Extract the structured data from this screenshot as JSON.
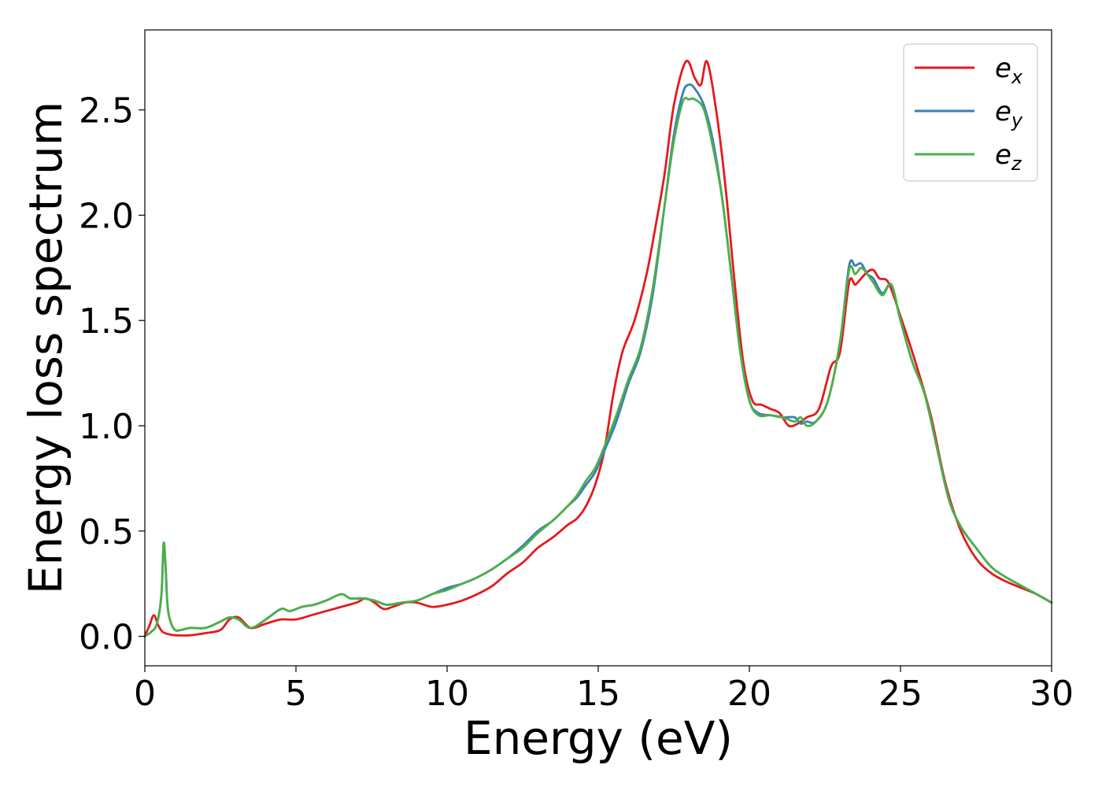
{
  "chart_data": {
    "type": "line",
    "xlabel": "Energy (eV)",
    "ylabel": "Energy loss spectrum",
    "xlim": [
      0,
      30
    ],
    "ylim": [
      -0.14,
      2.88
    ],
    "xticks": [
      0,
      5,
      10,
      15,
      20,
      25,
      30
    ],
    "xtick_labels": [
      "0",
      "5",
      "10",
      "15",
      "20",
      "25",
      "30"
    ],
    "yticks": [
      0.0,
      0.5,
      1.0,
      1.5,
      2.0,
      2.5
    ],
    "ytick_labels": [
      "0.0",
      "0.5",
      "1.0",
      "1.5",
      "2.0",
      "2.5"
    ],
    "grid": false,
    "legend_position": "top-right",
    "series": [
      {
        "name": "e_x",
        "legend_base": "e",
        "legend_sub": "x",
        "color": "#e41a1c",
        "x": [
          0,
          0.15,
          0.3,
          0.45,
          0.6,
          0.8,
          1.0,
          1.5,
          2.0,
          2.5,
          2.8,
          3.1,
          3.5,
          4.0,
          4.5,
          5.0,
          5.5,
          6.0,
          6.5,
          7.0,
          7.3,
          7.6,
          7.9,
          8.2,
          8.6,
          9.0,
          9.5,
          10.0,
          10.5,
          11.0,
          11.5,
          12.0,
          12.5,
          13.0,
          13.5,
          14.0,
          14.3,
          14.6,
          14.9,
          15.2,
          15.5,
          15.8,
          16.2,
          16.6,
          16.9,
          17.2,
          17.5,
          17.9,
          18.2,
          18.4,
          18.6,
          18.9,
          19.2,
          19.5,
          19.8,
          20.1,
          20.4,
          20.7,
          21.0,
          21.3,
          21.6,
          21.9,
          22.3,
          22.7,
          23.0,
          23.3,
          23.5,
          23.7,
          23.9,
          24.1,
          24.3,
          24.6,
          25.0,
          25.5,
          26.0,
          26.5,
          27.0,
          27.5,
          28.0,
          28.5,
          29.0,
          29.5,
          30.0
        ],
        "y": [
          0.0,
          0.05,
          0.1,
          0.05,
          0.02,
          0.01,
          0.005,
          0.005,
          0.015,
          0.03,
          0.08,
          0.09,
          0.04,
          0.06,
          0.08,
          0.08,
          0.1,
          0.12,
          0.14,
          0.16,
          0.18,
          0.16,
          0.13,
          0.14,
          0.16,
          0.16,
          0.14,
          0.15,
          0.17,
          0.2,
          0.24,
          0.3,
          0.35,
          0.42,
          0.47,
          0.53,
          0.56,
          0.62,
          0.72,
          0.88,
          1.15,
          1.35,
          1.5,
          1.72,
          1.95,
          2.2,
          2.52,
          2.73,
          2.65,
          2.62,
          2.73,
          2.5,
          2.15,
          1.7,
          1.3,
          1.12,
          1.1,
          1.08,
          1.06,
          1.0,
          1.01,
          1.04,
          1.08,
          1.28,
          1.35,
          1.68,
          1.67,
          1.7,
          1.73,
          1.74,
          1.7,
          1.68,
          1.52,
          1.3,
          1.05,
          0.72,
          0.5,
          0.37,
          0.3,
          0.26,
          0.23,
          0.2,
          0.16
        ]
      },
      {
        "name": "e_y",
        "legend_base": "e",
        "legend_sub": "y",
        "color": "#377eb8",
        "x": [
          0,
          0.2,
          0.4,
          0.55,
          0.62,
          0.68,
          0.75,
          0.85,
          1.0,
          1.2,
          1.5,
          2.0,
          2.5,
          2.8,
          3.1,
          3.5,
          4.0,
          4.5,
          4.8,
          5.2,
          5.6,
          6.0,
          6.5,
          6.8,
          7.2,
          7.6,
          8.0,
          8.5,
          9.0,
          9.5,
          10.0,
          10.5,
          11.0,
          11.5,
          12.0,
          12.5,
          13.0,
          13.5,
          14.0,
          14.3,
          14.6,
          14.9,
          15.2,
          15.6,
          16.0,
          16.4,
          16.8,
          17.2,
          17.5,
          17.8,
          18.0,
          18.2,
          18.5,
          18.8,
          19.1,
          19.4,
          19.7,
          20.0,
          20.3,
          20.7,
          21.1,
          21.5,
          21.7,
          21.9,
          22.2,
          22.6,
          23.0,
          23.3,
          23.5,
          23.7,
          23.9,
          24.1,
          24.4,
          24.7,
          25.0,
          25.4,
          25.8,
          26.2,
          26.6,
          27.0,
          27.5,
          28.0,
          28.5,
          29.0,
          29.5,
          30.0
        ],
        "y": [
          0.0,
          0.02,
          0.06,
          0.2,
          0.44,
          0.35,
          0.15,
          0.07,
          0.03,
          0.03,
          0.04,
          0.04,
          0.07,
          0.09,
          0.08,
          0.04,
          0.08,
          0.13,
          0.12,
          0.14,
          0.15,
          0.17,
          0.2,
          0.18,
          0.18,
          0.17,
          0.15,
          0.16,
          0.17,
          0.2,
          0.23,
          0.25,
          0.28,
          0.32,
          0.37,
          0.43,
          0.5,
          0.55,
          0.62,
          0.66,
          0.72,
          0.78,
          0.88,
          1.02,
          1.2,
          1.35,
          1.62,
          2.05,
          2.38,
          2.58,
          2.62,
          2.6,
          2.52,
          2.35,
          2.08,
          1.72,
          1.35,
          1.12,
          1.06,
          1.05,
          1.04,
          1.04,
          1.01,
          1.02,
          1.02,
          1.12,
          1.4,
          1.76,
          1.76,
          1.77,
          1.72,
          1.7,
          1.63,
          1.67,
          1.5,
          1.3,
          1.15,
          0.9,
          0.65,
          0.52,
          0.42,
          0.33,
          0.28,
          0.24,
          0.2,
          0.16
        ]
      },
      {
        "name": "e_z",
        "legend_base": "e",
        "legend_sub": "z",
        "color": "#4daf4a",
        "x": [
          0,
          0.2,
          0.4,
          0.55,
          0.62,
          0.68,
          0.75,
          0.85,
          1.0,
          1.2,
          1.5,
          2.0,
          2.5,
          2.8,
          3.1,
          3.5,
          4.0,
          4.5,
          4.8,
          5.2,
          5.6,
          6.0,
          6.5,
          6.8,
          7.2,
          7.6,
          8.0,
          8.5,
          9.0,
          9.5,
          10.0,
          10.5,
          11.0,
          11.5,
          12.0,
          12.5,
          13.0,
          13.5,
          14.0,
          14.3,
          14.6,
          14.9,
          15.2,
          15.6,
          16.0,
          16.4,
          16.8,
          17.2,
          17.5,
          17.8,
          18.0,
          18.2,
          18.5,
          18.8,
          19.1,
          19.4,
          19.7,
          20.0,
          20.3,
          20.7,
          21.1,
          21.5,
          21.7,
          21.9,
          22.2,
          22.6,
          23.0,
          23.3,
          23.5,
          23.7,
          23.9,
          24.1,
          24.4,
          24.7,
          25.0,
          25.4,
          25.8,
          26.2,
          26.6,
          27.0,
          27.5,
          28.0,
          28.5,
          29.0,
          29.5,
          30.0
        ],
        "y": [
          0.0,
          0.02,
          0.06,
          0.2,
          0.44,
          0.35,
          0.15,
          0.07,
          0.03,
          0.03,
          0.04,
          0.04,
          0.07,
          0.09,
          0.08,
          0.04,
          0.08,
          0.13,
          0.12,
          0.14,
          0.15,
          0.17,
          0.2,
          0.18,
          0.18,
          0.17,
          0.15,
          0.16,
          0.17,
          0.2,
          0.22,
          0.25,
          0.28,
          0.32,
          0.37,
          0.42,
          0.49,
          0.55,
          0.62,
          0.67,
          0.74,
          0.8,
          0.9,
          1.05,
          1.22,
          1.37,
          1.65,
          2.05,
          2.35,
          2.54,
          2.55,
          2.55,
          2.5,
          2.32,
          2.08,
          1.72,
          1.35,
          1.12,
          1.05,
          1.05,
          1.04,
          1.02,
          1.04,
          1.0,
          1.02,
          1.12,
          1.4,
          1.74,
          1.72,
          1.75,
          1.72,
          1.68,
          1.62,
          1.67,
          1.5,
          1.3,
          1.15,
          0.9,
          0.65,
          0.52,
          0.42,
          0.33,
          0.28,
          0.24,
          0.2,
          0.16
        ]
      }
    ]
  }
}
